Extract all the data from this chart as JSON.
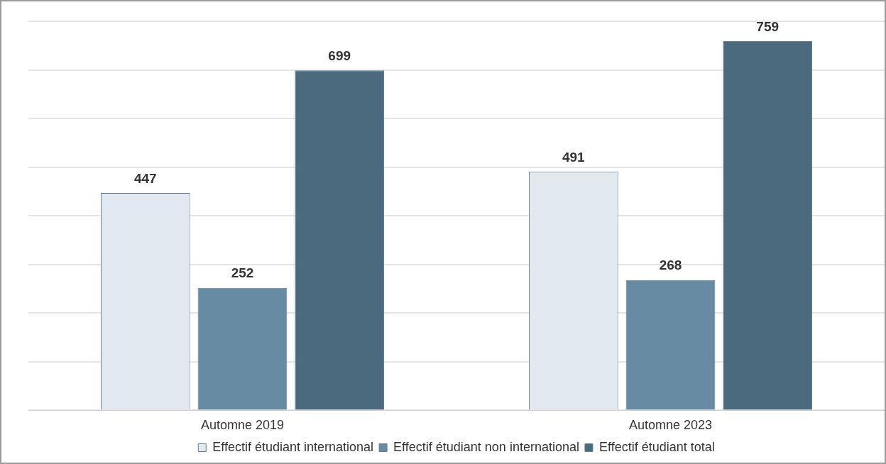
{
  "chart_data": {
    "type": "bar",
    "categories": [
      "Automne 2019",
      "Automne 2023"
    ],
    "series": [
      {
        "name": "Effectif étudiant international",
        "color": "#e1e8f0",
        "values": [
          447,
          491
        ]
      },
      {
        "name": "Effectif étudiant non international",
        "color": "#678ba3",
        "values": [
          252,
          268
        ]
      },
      {
        "name": "Effectif étudiant total",
        "color": "#4b6a7e",
        "values": [
          699,
          759
        ]
      }
    ],
    "ylim": [
      0,
      800
    ],
    "yticks": [
      0,
      100,
      200,
      300,
      400,
      500,
      600,
      700,
      800
    ],
    "tick_labels": "x",
    "grid": "y",
    "legend": "bottom",
    "data_labels": true
  }
}
